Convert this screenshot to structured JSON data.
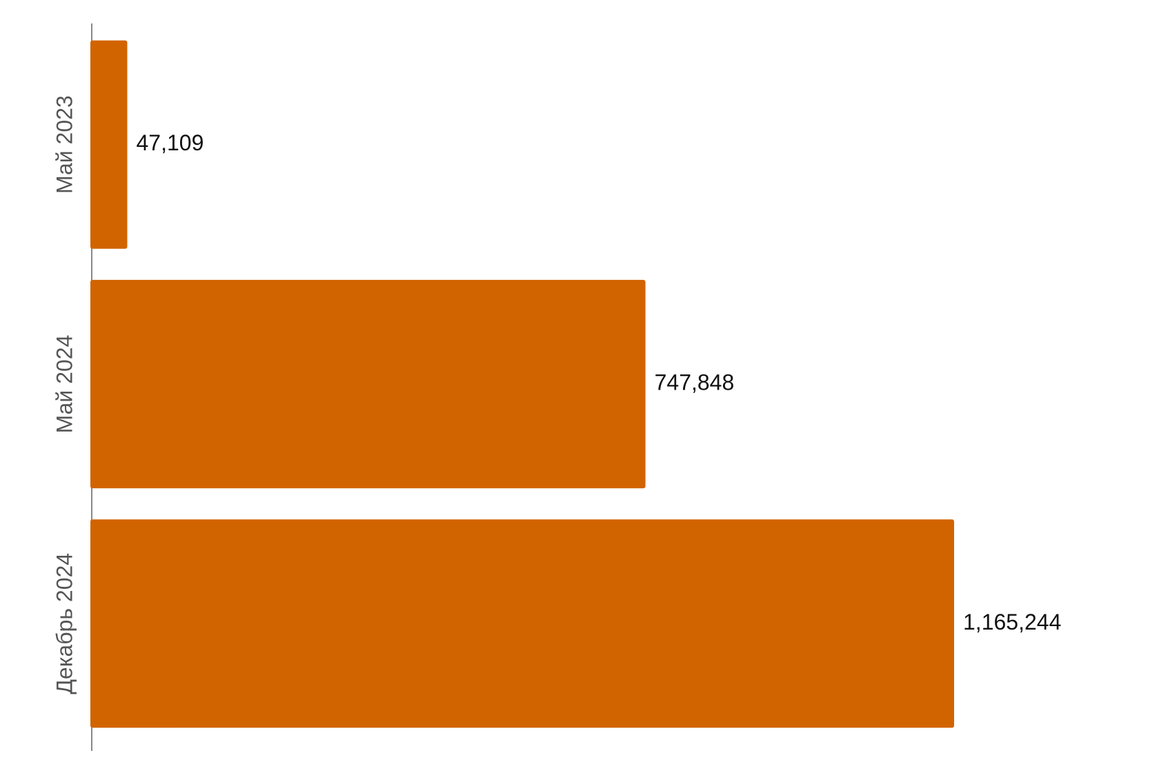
{
  "chart_data": {
    "type": "bar",
    "orientation": "horizontal",
    "categories": [
      "Май 2023",
      "Май 2024",
      "Декабрь 2024"
    ],
    "values": [
      47109,
      747848,
      1165244
    ],
    "value_labels": [
      "47,109",
      "747,848",
      "1,165,244"
    ],
    "color": "#d26400"
  }
}
